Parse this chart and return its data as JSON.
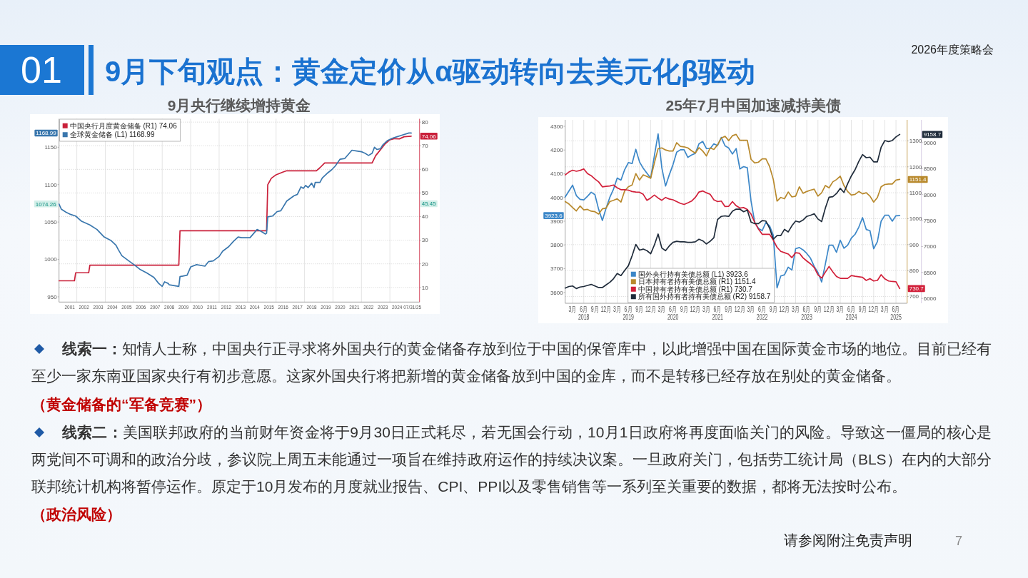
{
  "chart_data": [
    {
      "type": "other",
      "title": "9月下旬观点：黄金定价从α驱动转向去美元化β驱动",
      "annotations": [
        "01",
        "2026年度策略会"
      ]
    },
    {
      "type": "line",
      "title": "9月央行继续增持黄金",
      "xlim": [
        "2000-10",
        "2026-02"
      ],
      "xticks": [
        {
          "value": "2001-07",
          "label": "2001"
        },
        {
          "value": "2002-07",
          "label": "2002"
        },
        {
          "value": "2003-07",
          "label": "2003"
        },
        {
          "value": "2004-07",
          "label": "2004"
        },
        {
          "value": "2005-07",
          "label": "2005"
        },
        {
          "value": "2006-07",
          "label": "2006"
        },
        {
          "value": "2007-07",
          "label": "2007"
        },
        {
          "value": "2008-07",
          "label": "2008"
        },
        {
          "value": "2009-07",
          "label": "2009"
        },
        {
          "value": "2010-07",
          "label": "2010"
        },
        {
          "value": "2011-07",
          "label": "2011"
        },
        {
          "value": "2012-07",
          "label": "2012"
        },
        {
          "value": "2013-07",
          "label": "2013"
        },
        {
          "value": "2014-07",
          "label": "2014"
        },
        {
          "value": "2015-07",
          "label": "2015"
        },
        {
          "value": "2016-07",
          "label": "2016"
        },
        {
          "value": "2017-07",
          "label": "2017"
        },
        {
          "value": "2018-07",
          "label": "2018"
        },
        {
          "value": "2019-07",
          "label": "2019"
        },
        {
          "value": "2020-07",
          "label": "2020"
        },
        {
          "value": "2021-07",
          "label": "2021"
        },
        {
          "value": "2022-07",
          "label": "2022"
        },
        {
          "value": "2023-07",
          "label": "2023"
        },
        {
          "value": "2024-07",
          "label": "2024"
        },
        {
          "value": "2025-07-31",
          "label": "07/31/25"
        },
        {
          "value": "2002-01",
          "label": null
        },
        {
          "value": "2004-01",
          "label": null
        },
        {
          "value": "2006-01",
          "label": null
        },
        {
          "value": "2008-01",
          "label": null
        },
        {
          "value": "2010-01",
          "label": null
        },
        {
          "value": "2012-01",
          "label": null
        },
        {
          "value": "2014-01",
          "label": null
        },
        {
          "value": "2016-01",
          "label": null
        },
        {
          "value": "2018-01",
          "label": null
        },
        {
          "value": "2020-01",
          "label": null
        },
        {
          "value": "2022-01",
          "label": null
        },
        {
          "value": "2024-01",
          "label": null
        }
      ],
      "ylim": [
        943,
        1188
      ],
      "yticks": [
        950,
        1000,
        1050,
        1100,
        1150,
        1074.26,
        1168.99
      ],
      "y2lim": [
        3.8,
        81.4
      ],
      "y2ticks": [
        10,
        20,
        30,
        40,
        50,
        60,
        70,
        80,
        45.45,
        74.06
      ],
      "grid": true,
      "legend": "top left",
      "series": [
        {
          "name": "中国央行月度黄金储备 (R1) 74.06",
          "color": "#c9203a",
          "axis": "y2",
          "x": [
            "2000-10",
            "2001-11",
            "2001-12",
            "2002-11",
            "2002-12",
            "2009-03",
            "2009-04",
            "2015-05",
            "2015-06",
            "2015-09",
            "2016-01",
            "2016-07",
            "2016-10",
            "2018-11",
            "2019-02",
            "2019-06",
            "2022-10",
            "2023-01",
            "2023-05",
            "2023-09",
            "2024-01",
            "2024-05",
            "2024-09",
            "2025-01",
            "2025-07"
          ],
          "values": [
            12.8,
            12.8,
            16.2,
            16.2,
            19.4,
            19.4,
            34.0,
            34.0,
            53.5,
            56.2,
            57.7,
            58.9,
            59.4,
            59.4,
            60.7,
            62.7,
            62.7,
            65.8,
            68.3,
            70.8,
            72.5,
            73.0,
            72.9,
            73.8,
            74.06
          ]
        },
        {
          "name": "全球黄金储备 (L1) 1168.99",
          "color": "#3a77ad",
          "x": [
            "2000-10",
            "2000-12",
            "2001-04",
            "2001-08",
            "2001-12",
            "2002-05",
            "2002-12",
            "2003-06",
            "2003-12",
            "2004-06",
            "2004-10",
            "2004-12",
            "2005-03",
            "2005-08",
            "2006-02",
            "2006-06",
            "2006-12",
            "2007-06",
            "2007-10",
            "2008-01",
            "2008-03",
            "2008-06",
            "2008-07",
            "2009-03",
            "2009-04",
            "2009-10",
            "2010-01",
            "2010-06",
            "2011-01",
            "2011-04",
            "2011-08",
            "2012-01",
            "2012-04",
            "2012-09",
            "2013-01",
            "2013-05",
            "2013-08",
            "2013-11",
            "2014-03",
            "2014-09",
            "2014-12",
            "2015-04",
            "2015-05",
            "2015-06",
            "2015-10",
            "2016-02",
            "2016-05",
            "2016-10",
            "2017-04",
            "2017-07",
            "2017-10",
            "2017-12",
            "2018-02",
            "2018-04",
            "2018-07",
            "2018-09",
            "2018-10",
            "2019-02",
            "2019-04",
            "2019-08",
            "2019-12",
            "2020-03",
            "2020-07",
            "2020-11",
            "2021-05",
            "2021-09",
            "2022-01",
            "2022-04",
            "2022-07",
            "2022-10",
            "2022-12",
            "2023-02",
            "2023-05",
            "2023-07",
            "2023-11",
            "2024-03",
            "2024-07",
            "2024-11",
            "2025-05",
            "2025-07"
          ],
          "values": [
            1074,
            1067,
            1063,
            1060,
            1058,
            1051,
            1046,
            1040,
            1030,
            1025,
            1019,
            1013,
            1005,
            999,
            992,
            987,
            982,
            976,
            968,
            964,
            970,
            968,
            966,
            964,
            977,
            979,
            990,
            993,
            991,
            997,
            998,
            1004,
            1011,
            1017,
            1024,
            1030,
            1029,
            1029,
            1029,
            1040,
            1038,
            1034,
            1035,
            1057,
            1058,
            1064,
            1065,
            1078,
            1085,
            1087,
            1097,
            1095,
            1099,
            1096,
            1102,
            1096,
            1103,
            1103,
            1109,
            1115,
            1120,
            1125,
            1134,
            1135,
            1146,
            1145,
            1144,
            1142,
            1139,
            1142,
            1150,
            1147,
            1148,
            1153,
            1159,
            1162,
            1164,
            1166,
            1169,
            1168.99
          ]
        }
      ]
    },
    {
      "type": "line",
      "title": "25年7月中国加速减持美债",
      "x": [
        "2018-01",
        "2018-02",
        "2018-03",
        "2018-04",
        "2018-05",
        "2018-06",
        "2018-07",
        "2018-08",
        "2018-09",
        "2018-10",
        "2018-11",
        "2018-12",
        "2019-01",
        "2019-02",
        "2019-03",
        "2019-04",
        "2019-05",
        "2019-06",
        "2019-07",
        "2019-08",
        "2019-09",
        "2019-10",
        "2019-11",
        "2019-12",
        "2020-01",
        "2020-02",
        "2020-03",
        "2020-04",
        "2020-05",
        "2020-06",
        "2020-07",
        "2020-08",
        "2020-09",
        "2020-10",
        "2020-11",
        "2020-12",
        "2021-01",
        "2021-02",
        "2021-03",
        "2021-04",
        "2021-05",
        "2021-06",
        "2021-07",
        "2021-08",
        "2021-09",
        "2021-10",
        "2021-11",
        "2021-12",
        "2022-01",
        "2022-02",
        "2022-03",
        "2022-04",
        "2022-05",
        "2022-06",
        "2022-07",
        "2022-08",
        "2022-09",
        "2022-10",
        "2022-11",
        "2022-12",
        "2023-01",
        "2023-02",
        "2023-03",
        "2023-04",
        "2023-05",
        "2023-06",
        "2023-07",
        "2023-08",
        "2023-09",
        "2023-10",
        "2023-11",
        "2023-12",
        "2024-01",
        "2024-02",
        "2024-03",
        "2024-04",
        "2024-05",
        "2024-06",
        "2024-07",
        "2024-08",
        "2024-09",
        "2024-10",
        "2024-11",
        "2024-12",
        "2025-01",
        "2025-02",
        "2025-03",
        "2025-04",
        "2025-05",
        "2025-06",
        "2025-07"
      ],
      "xlim": [
        "2018-01",
        "2025-09"
      ],
      "xticks": [
        {
          "value": "2018-03",
          "label": "3月"
        },
        {
          "value": "2018-06",
          "label": "6月\n2018"
        },
        {
          "value": "2018-09",
          "label": "9月"
        },
        {
          "value": "2018-12",
          "label": "12月"
        },
        {
          "value": "2019-03",
          "label": "3月"
        },
        {
          "value": "2019-06",
          "label": "6月\n2019"
        },
        {
          "value": "2019-09",
          "label": "9月"
        },
        {
          "value": "2019-12",
          "label": "12月"
        },
        {
          "value": "2020-03",
          "label": "3月"
        },
        {
          "value": "2020-06",
          "label": "6月\n2020"
        },
        {
          "value": "2020-09",
          "label": "9月"
        },
        {
          "value": "2020-12",
          "label": "12月"
        },
        {
          "value": "2021-03",
          "label": "3月"
        },
        {
          "value": "2021-06",
          "label": "6月\n2021"
        },
        {
          "value": "2021-09",
          "label": "9月"
        },
        {
          "value": "2021-12",
          "label": "12月"
        },
        {
          "value": "2022-03",
          "label": "3月"
        },
        {
          "value": "2022-06",
          "label": "6月\n2022"
        },
        {
          "value": "2022-09",
          "label": "9月"
        },
        {
          "value": "2022-12",
          "label": "12月"
        },
        {
          "value": "2023-03",
          "label": "3月"
        },
        {
          "value": "2023-06",
          "label": "6月\n2023"
        },
        {
          "value": "2023-09",
          "label": "9月"
        },
        {
          "value": "2023-12",
          "label": "12月"
        },
        {
          "value": "2024-03",
          "label": "3月"
        },
        {
          "value": "2024-06",
          "label": "6月\n2024"
        },
        {
          "value": "2024-09",
          "label": "9月"
        },
        {
          "value": "2024-12",
          "label": "12月"
        },
        {
          "value": "2025-03",
          "label": "3月"
        },
        {
          "value": "2025-06",
          "label": "6月\n2025"
        }
      ],
      "ylim": [
        3554,
        4327
      ],
      "yticks": [
        3600,
        3700,
        3800,
        3900,
        4000,
        4100,
        4200,
        4300,
        3923.6
      ],
      "y2lim": [
        674,
        1381
      ],
      "y2ticks": [
        700,
        800,
        900,
        1000,
        1100,
        1200,
        1300,
        1151.4,
        730.7
      ],
      "y3lim": [
        5907,
        9438
      ],
      "y3ticks": [
        6000,
        6500,
        7000,
        7500,
        8000,
        8500,
        9000,
        9158.7
      ],
      "grid": true,
      "legend": "bottom",
      "series": [
        {
          "name": "国外央行持有美债总额 (L1) 3923.6",
          "color": "#3c87c8",
          "values": [
            4002,
            4027,
            4052,
            4008,
            3992,
            3990,
            4005,
            4022,
            4012,
            3950,
            3903,
            3955,
            4000,
            4035,
            4082,
            4073,
            4117,
            4147,
            4143,
            4203,
            4150,
            4123,
            4102,
            4082,
            4176,
            4268,
            4125,
            4048,
            4095,
            4138,
            4191,
            4201,
            4201,
            4169,
            4179,
            4186,
            4226,
            4236,
            4206,
            4206,
            4226,
            4219,
            4253,
            4218,
            4208,
            4183,
            4206,
            4120,
            4130,
            4125,
            3985,
            3895,
            3870,
            3860,
            3895,
            3880,
            3840,
            3619,
            3669,
            3674,
            3706,
            3694,
            3784,
            3789,
            3779,
            3764,
            3744,
            3709,
            3684,
            3644,
            3720,
            3799,
            3799,
            3769,
            3820,
            3786,
            3799,
            3829,
            3845,
            3875,
            3915,
            3865,
            3860,
            3784,
            3814,
            3900,
            3925,
            3925,
            3900,
            3923,
            3923.6
          ]
        },
        {
          "name": "日本持有者持有美债总额 (R1) 1151.4",
          "color": "#b8892c",
          "axis": "y2",
          "values": [
            1066,
            1057,
            1043,
            1030,
            1049,
            1034,
            1036,
            1029,
            1027,
            1018,
            1038,
            1041,
            1066,
            1071,
            1077,
            1064,
            1107,
            1123,
            1130,
            1174,
            1149,
            1169,
            1163,
            1156,
            1215,
            1270,
            1273,
            1265,
            1261,
            1261,
            1293,
            1279,
            1277,
            1273,
            1262,
            1253,
            1274,
            1261,
            1242,
            1273,
            1267,
            1285,
            1311,
            1318,
            1301,
            1320,
            1325,
            1302,
            1302,
            1302,
            1229,
            1215,
            1218,
            1231,
            1231,
            1201,
            1151,
            1068,
            1082,
            1077,
            1103,
            1084,
            1087,
            1123,
            1098,
            1105,
            1110,
            1114,
            1087,
            1100,
            1128,
            1119,
            1142,
            1151,
            1164,
            1128,
            1105,
            1091,
            1094,
            1105,
            1096,
            1100,
            1087,
            1064,
            1082,
            1123,
            1132,
            1134,
            1134,
            1149,
            1151.4
          ]
        },
        {
          "name": "中国持有者持有美债总额 (R1) 730.7",
          "color": "#d2203a",
          "axis": "y2",
          "values": [
            1169,
            1180,
            1187,
            1183,
            1186,
            1192,
            1174,
            1166,
            1153,
            1142,
            1123,
            1125,
            1126,
            1130,
            1119,
            1112,
            1112,
            1110,
            1105,
            1103,
            1102,
            1094,
            1071,
            1080,
            1091,
            1080,
            1071,
            1082,
            1076,
            1073,
            1066,
            1059,
            1055,
            1061,
            1068,
            1082,
            1103,
            1107,
            1100,
            1094,
            1073,
            1066,
            1068,
            1047,
            1048,
            1066,
            1050,
            1041,
            1043,
            1036,
            1018,
            986,
            960,
            940,
            940,
            940,
            917,
            890,
            874,
            869,
            864,
            850,
            869,
            867,
            849,
            837,
            826,
            812,
            784,
            771,
            794,
            816,
            795,
            777,
            770,
            770,
            770,
            781,
            778,
            776,
            774,
            762,
            769,
            760,
            762,
            784,
            768,
            760,
            758,
            757,
            730.7
          ]
        },
        {
          "name": "所有国外持有者持有美债总额 (R2) 9158.7",
          "color": "#1f2b3a",
          "axis": "y3",
          "values": [
            6200,
            6230,
            6240,
            6190,
            6220,
            6230,
            6250,
            6270,
            6240,
            6210,
            6210,
            6260,
            6310,
            6380,
            6480,
            6440,
            6540,
            6630,
            6820,
            7040,
            6930,
            6950,
            6920,
            6860,
            7030,
            7240,
            6970,
            6920,
            7010,
            7080,
            7100,
            7090,
            7090,
            7080,
            7080,
            7090,
            7140,
            7110,
            7050,
            7100,
            7170,
            7520,
            7580,
            7590,
            7580,
            7680,
            7720,
            7720,
            7670,
            7700,
            7470,
            7440,
            7440,
            7500,
            7490,
            7350,
            7140,
            7210,
            7210,
            7330,
            7280,
            7400,
            7490,
            7470,
            7510,
            7580,
            7600,
            7630,
            7530,
            7480,
            7740,
            7950,
            7960,
            8020,
            8120,
            8040,
            8210,
            8360,
            8480,
            8640,
            8770,
            8710,
            8720,
            8630,
            8630,
            8910,
            9040,
            9020,
            9040,
            9110,
            9158.7
          ]
        }
      ]
    },
    {
      "type": "other",
      "annotations": [
        "**线索一：**知情人士称，中国央行正寻求将外国央行的黄金储备存放到位于中国的保管库中，以此增强中国在国际黄金市场的地位。目前已经有至少一家东南亚国家央行有初步意愿。这家外国央行将把新增的黄金储备放到中国的金库，而不是转移已经存放在别处的黄金储备。",
        "（黄金储备的“军备竞赛”）",
        "**线索二：**美国联邦政府的当前财年资金将于9月30日正式耗尽，若无国会行动，10月1日政府将再度面临关门的风险。导致这一僵局的核心是两党间不可调和的政治分歧，参议院上周五未能通过一项旨在维持政府运作的持续决议案。一旦政府关门，包括劳工统计局（BLS）在内的大部分联邦统计机构将暂停运作。原定于10月发布的月度就业报告、CPI、PPI以及零售销售等一系列至关重要的数据，都将无法按时公布。",
        "（政治风险）",
        "请参阅附注免责声明",
        "7"
      ]
    }
  ]
}
